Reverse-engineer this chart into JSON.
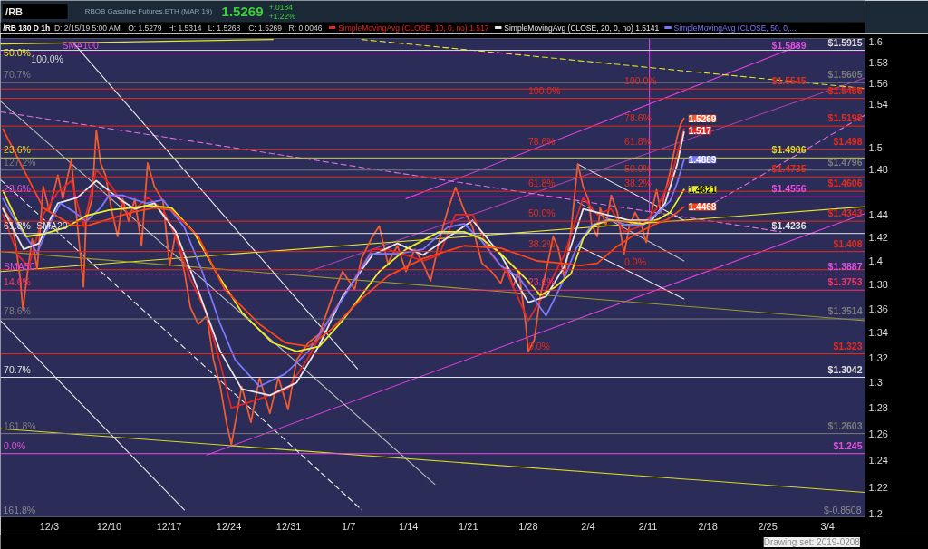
{
  "chart_data": {
    "type": "line",
    "title": "RBOB Gasoline Futures,ETH (MAR 19)",
    "subtitle": "/RB 180 D 1h",
    "log": true,
    "legend": "top",
    "xlim": [
      "2018-11-27T07:00",
      "2019-03-08T09:00"
    ],
    "ylim": [
      1.198,
      1.603
    ],
    "xticks": [
      {
        "value": "2018-12-03",
        "label": "12/3"
      },
      {
        "value": "2018-12-10",
        "label": "12/10"
      },
      {
        "value": "2018-12-17",
        "label": "12/17"
      },
      {
        "value": "2018-12-24",
        "label": "12/24"
      },
      {
        "value": "2018-12-31",
        "label": "12/31"
      },
      {
        "value": "2019-01-07",
        "label": "1/7"
      },
      {
        "value": "2019-01-14",
        "label": "1/14"
      },
      {
        "value": "2019-01-21",
        "label": "1/21"
      },
      {
        "value": "2019-01-28",
        "label": "1/28"
      },
      {
        "value": "2019-02-04",
        "label": "2/4"
      },
      {
        "value": "2019-02-11",
        "label": "2/11"
      },
      {
        "value": "2019-02-18",
        "label": "2/18"
      },
      {
        "value": "2019-02-25",
        "label": "2/25"
      },
      {
        "value": "2019-03-04",
        "label": "3/4"
      }
    ],
    "yticks": [
      1.2,
      1.22,
      1.24,
      1.26,
      1.28,
      1.3,
      1.32,
      1.34,
      1.36,
      1.38,
      1.4,
      1.42,
      1.44,
      {
        "value": 1.46,
        "label": null
      },
      1.48,
      1.5,
      {
        "value": 1.52,
        "label": null
      },
      1.54,
      1.56,
      1.58,
      1.6
    ],
    "series": [
      {
        "color": "#e040e0",
        "x": [
          "2019-01-13T17:00",
          "2019-02-28T16:00"
        ],
        "values": [
          1.454,
          1.596
        ]
      },
      {
        "color": "#e040e0",
        "x": [
          "2018-12-21T10:00",
          "2019-03-08T09:00"
        ],
        "values": [
          1.244,
          1.441
        ]
      },
      {
        "color": "#b040b0",
        "x": [
          "2019-01-02T07:00",
          "2019-03-08T09:00"
        ],
        "values": [
          1.391,
          1.565
        ]
      },
      {
        "color": "#e070e0",
        "line_style": "dashed",
        "x": [
          "2018-11-27T07:00",
          "2019-02-26T13:00"
        ],
        "values": [
          1.533,
          1.425
        ]
      },
      {
        "color": "#e070e0",
        "line_style": "dashed",
        "x": [
          "2019-02-18T16:00",
          "2019-03-08T09:00"
        ],
        "values": [
          1.45,
          1.53
        ]
      },
      {
        "color": "#e6e620",
        "x": [
          "2018-11-27T07:00",
          "2019-03-08T09:00"
        ],
        "values": [
          1.391,
          1.447
        ]
      },
      {
        "color": "#9a9a2a",
        "x": [
          "2018-11-27T07:00",
          "2019-03-08T09:00"
        ],
        "values": [
          1.408,
          1.35
        ]
      },
      {
        "color": "#d8d820",
        "x": [
          "2018-11-27T07:00",
          "2019-03-08T09:00"
        ],
        "values": [
          1.264,
          1.216
        ]
      },
      {
        "color": "#e6e620",
        "line_style": "dashed",
        "x": [
          "2019-01-08T13:00",
          "2019-03-08T09:00"
        ],
        "values": [
          1.602,
          1.555
        ]
      },
      {
        "color": "#e6e620",
        "x": [
          "2018-11-27T07:00",
          "2018-12-29T04:00"
        ],
        "values": [
          1.5976,
          1.602
        ]
      },
      {
        "color": "#e8e8e8",
        "x": [
          "2018-12-05T19:00",
          "2019-01-08T01:00"
        ],
        "values": [
          1.599,
          1.311
        ]
      },
      {
        "color": "#bdbdbd",
        "x": [
          "2018-11-27T07:00",
          "2019-01-17T02:00"
        ],
        "values": [
          1.543,
          1.222
        ]
      },
      {
        "color": "#e8e8e8",
        "line_style": "dashed",
        "x": [
          "2018-11-27T07:00",
          "2019-01-08T13:00"
        ],
        "values": [
          1.471,
          1.203
        ]
      },
      {
        "color": "#e8e8e8",
        "x": [
          "2018-11-27T07:00",
          "2018-12-18T19:00"
        ],
        "values": [
          1.35,
          1.203
        ]
      },
      {
        "color": "#e8e8e8",
        "x": [
          "2019-02-02T19:00",
          "2019-02-15T05:00"
        ],
        "values": [
          1.485,
          1.435
        ]
      },
      {
        "color": "#bdbdbd",
        "x": [
          "2019-02-02T19:00",
          "2019-02-15T05:00"
        ],
        "values": [
          1.451,
          1.4
        ]
      },
      {
        "color": "#e8e8e8",
        "x": [
          "2019-02-02T19:00",
          "2019-02-15T05:00"
        ],
        "values": [
          1.413,
          1.368
        ]
      },
      {
        "color": "#e040e0",
        "x": [
          "2019-02-11T04:00",
          "2019-02-11T04:00"
        ],
        "values": [
          1.602,
          1.442
        ]
      },
      {
        "color": "#f05a30",
        "x": [
          "2018-11-27T14:00",
          "2018-11-28T14:00",
          "2018-11-29T02:00",
          "2018-11-29T14:00",
          "2018-11-29T22:00",
          "2018-11-30T12:00",
          "2018-12-01T00:00",
          "2018-12-01T14:00",
          "2018-12-02T07:00",
          "2018-12-03T00:00",
          "2018-12-04T00:00",
          "2018-12-04T14:00",
          "2018-12-05T14:00",
          "2018-12-06T07:00",
          "2018-12-07T00:00",
          "2018-12-07T07:00",
          "2018-12-08T00:00",
          "2018-12-08T12:00",
          "2018-12-09T00:00",
          "2018-12-09T14:00",
          "2018-12-10T07:00",
          "2018-12-11T00:00",
          "2018-12-11T14:00",
          "2018-12-12T07:00",
          "2018-12-13T00:00",
          "2018-12-13T19:00",
          "2018-12-14T12:00",
          "2018-12-15T07:00",
          "2018-12-16T07:00",
          "2018-12-17T02:00",
          "2018-12-17T19:00",
          "2018-12-18T19:00",
          "2018-12-19T12:00",
          "2018-12-20T10:00",
          "2018-12-21T10:00",
          "2018-12-22T05:00",
          "2018-12-23T00:00",
          "2018-12-23T17:00",
          "2018-12-24T07:00",
          "2018-12-25T12:00",
          "2018-12-26T14:00",
          "2018-12-27T14:00",
          "2018-12-28T19:00",
          "2018-12-29T19:00",
          "2018-12-30T22:00",
          "2018-12-31T22:00",
          "2019-01-02T07:00",
          "2019-01-03T14:00",
          "2019-01-05T00:00",
          "2019-01-06T07:00",
          "2019-01-07T17:00",
          "2019-01-08T12:00",
          "2019-01-09T19:00",
          "2019-01-10T14:00",
          "2019-01-11T14:00",
          "2019-01-12T17:00",
          "2019-01-13T17:00",
          "2019-01-14T17:00",
          "2019-01-15T17:00",
          "2019-01-16T14:00",
          "2019-01-17T14:00",
          "2019-01-18T14:00",
          "2019-01-19T12:00",
          "2019-01-20T12:00",
          "2019-01-21T12:00",
          "2019-01-22T14:00",
          "2019-01-23T17:00",
          "2019-01-24T19:00",
          "2019-01-25T12:00",
          "2019-01-26T05:00",
          "2019-01-26T22:00",
          "2019-01-27T17:00",
          "2019-01-28T00:00",
          "2019-01-28T17:00",
          "2019-01-29T10:00",
          "2019-01-30T02:00",
          "2019-01-30T22:00",
          "2019-01-31T12:00",
          "2019-02-01T05:00",
          "2019-02-02T00:00",
          "2019-02-02T19:00",
          "2019-02-03T10:00",
          "2019-02-04T02:00",
          "2019-02-04T10:00",
          "2019-02-05T02:00",
          "2019-02-05T10:00",
          "2019-02-06T02:00",
          "2019-02-06T17:00",
          "2019-02-07T10:00",
          "2019-02-08T05:00",
          "2019-02-08T19:00",
          "2019-02-09T12:00",
          "2019-02-10T05:00",
          "2019-02-10T19:00",
          "2019-02-11T10:00",
          "2019-02-12T00:00",
          "2019-02-12T12:00",
          "2019-02-13T00:00",
          "2019-02-13T14:00",
          "2019-02-14T00:00",
          "2019-02-14T10:00",
          "2019-02-14T19:00",
          "2019-02-15T05:00"
        ],
        "values": [
          1.446,
          1.434,
          1.413,
          1.386,
          1.359,
          1.393,
          1.419,
          1.393,
          1.465,
          1.444,
          1.475,
          1.454,
          1.489,
          1.431,
          1.378,
          1.434,
          1.454,
          1.516,
          1.486,
          1.475,
          1.444,
          1.421,
          1.454,
          1.434,
          1.454,
          1.413,
          1.486,
          1.465,
          1.452,
          1.396,
          1.425,
          1.391,
          1.361,
          1.347,
          1.354,
          1.318,
          1.297,
          1.269,
          1.252,
          1.297,
          1.269,
          1.304,
          1.276,
          1.304,
          1.279,
          1.318,
          1.332,
          1.339,
          1.368,
          1.391,
          1.376,
          1.402,
          1.421,
          1.43,
          1.398,
          1.413,
          1.391,
          1.41,
          1.398,
          1.383,
          1.417,
          1.444,
          1.464,
          1.444,
          1.429,
          1.398,
          1.391,
          1.381,
          1.396,
          1.378,
          1.391,
          1.347,
          1.325,
          1.334,
          1.371,
          1.391,
          1.421,
          1.411,
          1.386,
          1.426,
          1.485,
          1.465,
          1.452,
          1.431,
          1.421,
          1.446,
          1.431,
          1.457,
          1.442,
          1.406,
          1.429,
          1.442,
          1.431,
          1.416,
          1.442,
          1.462,
          1.442,
          1.46,
          1.478,
          1.494,
          1.51,
          1.521,
          1.5269
        ],
        "value_labels": [
          null,
          null,
          null,
          null,
          null,
          null,
          null,
          null,
          null,
          null,
          null,
          null,
          null,
          null,
          null,
          null,
          null,
          null,
          null,
          null,
          null,
          null,
          null,
          null,
          null,
          null,
          null,
          null,
          null,
          null,
          null,
          null,
          null,
          null,
          null,
          null,
          null,
          null,
          null,
          null,
          null,
          null,
          null,
          null,
          null,
          null,
          null,
          null,
          null,
          null,
          null,
          null,
          null,
          null,
          null,
          null,
          null,
          null,
          null,
          null,
          null,
          null,
          null,
          null,
          null,
          null,
          null,
          null,
          null,
          null,
          null,
          null,
          null,
          null,
          null,
          null,
          null,
          null,
          null,
          null,
          null,
          null,
          null,
          null,
          null,
          null,
          null,
          null,
          null,
          null,
          null,
          null,
          null,
          null,
          null,
          null,
          null,
          null,
          null,
          null,
          null,
          null,
          "1.5269"
        ]
      },
      {
        "name": "SimpleMovingAvg (CLOSE, 10, 0, no)",
        "color": "#e02626",
        "x": [
          "2018-11-27T14:00",
          "2018-11-29T08:00",
          "2018-11-30T14:00",
          "2018-12-02T07:00",
          "2018-12-04T00:00",
          "2018-12-05T14:00",
          "2018-12-07T00:00",
          "2018-12-08T12:00",
          "2018-12-10T07:00",
          "2018-12-12T07:00",
          "2018-12-14T12:00",
          "2018-12-16T07:00",
          "2018-12-17T19:00",
          "2018-12-19T12:00",
          "2018-12-21T10:00",
          "2018-12-23T00:00",
          "2018-12-24T07:00",
          "2018-12-26T14:00",
          "2018-12-28T19:00",
          "2018-12-30T22:00",
          "2019-01-02T07:00",
          "2019-01-05T00:00",
          "2019-01-07T17:00",
          "2019-01-09T19:00",
          "2019-01-11T14:00",
          "2019-01-13T17:00",
          "2019-01-15T17:00",
          "2019-01-17T14:00",
          "2019-01-19T12:00",
          "2019-01-21T12:00",
          "2019-01-23T17:00",
          "2019-01-25T12:00",
          "2019-01-28T00:00",
          "2019-01-30T02:00",
          "2019-02-01T05:00",
          "2019-02-03T10:00",
          "2019-02-05T02:00",
          "2019-02-06T17:00",
          "2019-02-08T05:00",
          "2019-02-10T05:00",
          "2019-02-12T00:00",
          "2019-02-13T14:00",
          "2019-02-15T05:00"
        ],
        "values": [
          1.44,
          1.405,
          1.395,
          1.44,
          1.46,
          1.47,
          1.43,
          1.48,
          1.465,
          1.44,
          1.455,
          1.445,
          1.42,
          1.385,
          1.355,
          1.315,
          1.28,
          1.285,
          1.29,
          1.295,
          1.32,
          1.355,
          1.385,
          1.41,
          1.41,
          1.405,
          1.4,
          1.405,
          1.44,
          1.44,
          1.405,
          1.39,
          1.35,
          1.375,
          1.405,
          1.455,
          1.44,
          1.445,
          1.425,
          1.43,
          1.445,
          1.47,
          1.517
        ],
        "value_labels": [
          null,
          null,
          null,
          null,
          null,
          null,
          null,
          null,
          null,
          null,
          null,
          null,
          null,
          null,
          null,
          null,
          null,
          null,
          null,
          null,
          null,
          null,
          null,
          null,
          null,
          null,
          null,
          null,
          null,
          null,
          null,
          null,
          null,
          null,
          null,
          null,
          null,
          null,
          null,
          null,
          null,
          null,
          "1.517"
        ]
      },
      {
        "name": "SimpleMovingAvg (CLOSE, 20, 0, no)",
        "color": "#e6e6e6",
        "x": [
          "2018-11-27T14:00",
          "2018-11-30T00:00",
          "2018-12-01T19:00",
          "2018-12-04T00:00",
          "2018-12-06T07:00",
          "2018-12-08T12:00",
          "2018-12-11T00:00",
          "2018-12-13T00:00",
          "2018-12-15T07:00",
          "2018-12-17T19:00",
          "2018-12-20T10:00",
          "2018-12-23T00:00",
          "2018-12-25T12:00",
          "2018-12-28T19:00",
          "2018-12-31T22:00",
          "2019-01-03T14:00",
          "2019-01-06T07:00",
          "2019-01-09T19:00",
          "2019-01-12T17:00",
          "2019-01-15T17:00",
          "2019-01-18T14:00",
          "2019-01-21T12:00",
          "2019-01-24T19:00",
          "2019-01-28T00:00",
          "2019-01-30T02:00",
          "2019-02-01T05:00",
          "2019-02-03T10:00",
          "2019-02-06T02:00",
          "2019-02-08T19:00",
          "2019-02-11T10:00",
          "2019-02-13T00:00",
          "2019-02-14T10:00",
          "2019-02-15T05:00"
        ],
        "values": [
          1.445,
          1.41,
          1.415,
          1.45,
          1.455,
          1.47,
          1.455,
          1.445,
          1.45,
          1.425,
          1.375,
          1.325,
          1.295,
          1.29,
          1.3,
          1.33,
          1.37,
          1.405,
          1.415,
          1.405,
          1.42,
          1.435,
          1.405,
          1.365,
          1.37,
          1.395,
          1.445,
          1.44,
          1.435,
          1.435,
          1.45,
          1.485,
          1.5141
        ]
      },
      {
        "name": "SimpleMovingAvg (CLOSE, 50, 0,...",
        "color": "#7878ff",
        "x": [
          "2018-11-27T14:00",
          "2018-11-29T07:00",
          "2018-12-01T14:00",
          "2018-12-03T00:00",
          "2018-12-04T07:00",
          "2018-12-06T00:00",
          "2018-12-07T07:00",
          "2018-12-09T00:00",
          "2018-12-10T00:00",
          "2018-12-11T14:00",
          "2018-12-12T15:00",
          "2018-12-14T08:00",
          "2018-12-16T07:00",
          "2018-12-18T19:00",
          "2018-12-20T21:00",
          "2018-12-23T00:00",
          "2018-12-24T18:00",
          "2018-12-27T14:00",
          "2018-12-30T14:00",
          "2019-01-02T07:00",
          "2019-01-06T07:00",
          "2019-01-09T13:00",
          "2019-01-12T17:00",
          "2019-01-15T17:00",
          "2019-01-18T14:00",
          "2019-01-20T12:00",
          "2019-01-22T14:00",
          "2019-01-24T19:00",
          "2019-01-26T22:00",
          "2019-01-28T17:00",
          "2019-01-30T02:00",
          "2019-01-31T23:00",
          "2019-02-02T15:00",
          "2019-02-04T10:00",
          "2019-02-06T11:00",
          "2019-02-08T12:00",
          "2019-02-10T11:00",
          "2019-02-12T05:00",
          "2019-02-13T14:00",
          "2019-02-14T10:00",
          "2019-02-15T05:00"
        ],
        "values": [
          1.454,
          1.431,
          1.407,
          1.431,
          1.45,
          1.442,
          1.434,
          1.446,
          1.457,
          1.457,
          1.454,
          1.45,
          1.453,
          1.429,
          1.391,
          1.347,
          1.318,
          1.297,
          1.307,
          1.325,
          1.368,
          1.406,
          1.406,
          1.41,
          1.429,
          1.432,
          1.417,
          1.396,
          1.386,
          1.368,
          1.354,
          1.381,
          1.411,
          1.431,
          1.436,
          1.431,
          1.431,
          1.442,
          1.452,
          1.468,
          1.4889
        ],
        "value_labels": [
          null,
          null,
          null,
          null,
          null,
          null,
          null,
          null,
          null,
          null,
          null,
          null,
          null,
          null,
          null,
          null,
          null,
          null,
          null,
          null,
          null,
          null,
          null,
          null,
          null,
          null,
          null,
          null,
          null,
          null,
          null,
          null,
          null,
          null,
          null,
          null,
          null,
          null,
          null,
          null,
          "1.4889"
        ]
      },
      {
        "color": "#ecec28",
        "x": [
          "2018-11-27T14:00",
          "2018-11-29T07:00",
          "2018-11-30T08:00",
          "2018-12-02T07:00",
          "2018-12-05T00:00",
          "2018-12-07T07:00",
          "2018-12-10T00:00",
          "2018-12-12T15:00",
          "2018-12-14T15:00",
          "2018-12-17T07:00",
          "2018-12-19T21:00",
          "2018-12-22T11:00",
          "2018-12-25T12:00",
          "2018-12-29T02:00",
          "2018-12-31T22:00",
          "2019-01-03T14:00",
          "2019-01-06T07:00",
          "2019-01-10T14:00",
          "2019-01-13T17:00",
          "2019-01-17T14:00",
          "2019-01-20T12:00",
          "2019-01-22T14:00",
          "2019-01-24T19:00",
          "2019-01-27T17:00",
          "2019-01-29T10:00",
          "2019-01-31T04:00",
          "2019-02-02T00:00",
          "2019-02-03T10:00",
          "2019-02-04T17:00",
          "2019-02-06T11:00",
          "2019-02-08T12:00",
          "2019-02-10T11:00",
          "2019-02-12T05:00",
          "2019-02-13T14:00",
          "2019-02-14T10:00",
          "2019-02-15T05:00"
        ],
        "values": [
          1.461,
          1.434,
          1.421,
          1.423,
          1.429,
          1.439,
          1.444,
          1.446,
          1.448,
          1.446,
          1.425,
          1.391,
          1.357,
          1.332,
          1.325,
          1.329,
          1.35,
          1.391,
          1.41,
          1.425,
          1.425,
          1.419,
          1.406,
          1.385,
          1.371,
          1.378,
          1.389,
          1.419,
          1.431,
          1.435,
          1.434,
          1.432,
          1.436,
          1.442,
          1.452,
          1.4621
        ],
        "value_labels": [
          null,
          null,
          null,
          null,
          null,
          null,
          null,
          null,
          null,
          null,
          null,
          null,
          null,
          null,
          null,
          null,
          null,
          null,
          null,
          null,
          null,
          null,
          null,
          null,
          null,
          null,
          null,
          null,
          null,
          null,
          null,
          null,
          null,
          null,
          null,
          "1.4621"
        ]
      },
      {
        "color": "#ff4418",
        "x": [
          "2018-11-27T14:00",
          "2018-12-02T07:00",
          "2018-12-05T14:00",
          "2018-12-07T07:00",
          "2018-12-10T00:00",
          "2018-12-12T15:00",
          "2018-12-15T07:00",
          "2018-12-17T07:00",
          "2018-12-20T10:00",
          "2018-12-23T12:00",
          "2018-12-27T14:00",
          "2018-12-30T14:00",
          "2019-01-02T07:00",
          "2019-01-05T00:00",
          "2019-01-08T12:00",
          "2019-01-11T14:00",
          "2019-01-15T17:00",
          "2019-01-20T12:00",
          "2019-01-24T19:00",
          "2019-01-29T01:00",
          "2019-01-31T23:00",
          "2019-02-03T02:00",
          "2019-02-05T02:00",
          "2019-02-07T03:00",
          "2019-02-09T12:00",
          "2019-02-11T16:00",
          "2019-02-13T07:00",
          "2019-02-14T10:00",
          "2019-02-15T05:00"
        ],
        "values": [
          1.517,
          1.446,
          1.431,
          1.43,
          1.436,
          1.442,
          1.446,
          1.444,
          1.421,
          1.376,
          1.347,
          1.332,
          1.329,
          1.343,
          1.368,
          1.387,
          1.402,
          1.413,
          1.411,
          1.4,
          1.398,
          1.396,
          1.398,
          1.411,
          1.423,
          1.431,
          1.436,
          1.442,
          1.4468
        ],
        "value_labels": [
          null,
          null,
          null,
          null,
          null,
          null,
          null,
          null,
          null,
          null,
          null,
          null,
          null,
          null,
          null,
          null,
          null,
          null,
          null,
          null,
          null,
          null,
          null,
          null,
          null,
          null,
          null,
          null,
          "1.4468"
        ]
      }
    ],
    "ref_lines": [
      {
        "axis": "y",
        "value": 1.5915,
        "label": "$1.5915",
        "color": "#d8d8d8"
      },
      {
        "axis": "y",
        "value": 1.5889,
        "label": "$1.5889",
        "color": "#e050e0"
      },
      {
        "axis": "y",
        "value": 1.5605,
        "label": "$1.5605",
        "color": "#7a7a7a"
      },
      {
        "axis": "y",
        "value": 1.5545,
        "label": "$1.5545",
        "color": "#e82a1a"
      },
      {
        "axis": "y",
        "value": 1.5456,
        "label": "$1.5456",
        "color": "#e82a1a"
      },
      {
        "axis": "y",
        "value": 1.5198,
        "label": "$1.5198",
        "color": "#e82a1a"
      },
      {
        "axis": "y",
        "value": 1.498,
        "label": "$1.498",
        "color": "#e82a1a"
      },
      {
        "axis": "y",
        "value": 1.4906,
        "label": "$1.4906",
        "color": "#d8d820"
      },
      {
        "axis": "y",
        "value": 1.4796,
        "label": "$1.4796",
        "color": "#7a7a7a"
      },
      {
        "axis": "y",
        "value": 1.4735,
        "label": "$1.4735",
        "color": "#e82a1a"
      },
      {
        "axis": "y",
        "value": 1.4606,
        "label": "$1.4606",
        "color": "#e82a1a"
      },
      {
        "axis": "y",
        "value": 1.4556,
        "label": "$1.4556",
        "color": "#e050e0"
      },
      {
        "axis": "y",
        "value": 1.4343,
        "label": "$1.4343",
        "color": "#e82a1a"
      },
      {
        "axis": "y",
        "value": 1.4236,
        "label": "$1.4236",
        "color": "#e0e0e0"
      },
      {
        "axis": "y",
        "value": 1.408,
        "label": "$1.408",
        "color": "#e82a1a"
      },
      {
        "axis": "y",
        "value": 1.3925,
        "label": null,
        "color": "#e82a1a"
      },
      {
        "axis": "y",
        "value": 1.3887,
        "label": "$1.3887",
        "color": "#e050e0",
        "line_style": "dotted"
      },
      {
        "axis": "y",
        "value": 1.3753,
        "label": "$1.3753",
        "color": "#ff3068"
      },
      {
        "axis": "y",
        "value": 1.3514,
        "label": "$1.3514",
        "color": "#7a7a7a"
      },
      {
        "axis": "y",
        "value": 1.323,
        "label": "$1.323",
        "color": "#e82a1a"
      },
      {
        "axis": "y",
        "value": 1.3042,
        "label": "$1.3042",
        "color": "#e0e0e0"
      },
      {
        "axis": "y",
        "value": 1.2603,
        "label": "$1.2603",
        "color": "#7a7a7a"
      },
      {
        "axis": "y",
        "value": 1.245,
        "label": "$1.245",
        "color": "#e050e0"
      }
    ],
    "annotations": [
      "/RB",
      "1.5269",
      "+.0184",
      "+1.22%",
      "D: 2/15/19 5:00 AM",
      "O: 1.5279",
      "H: 1.5314",
      "L: 1.5268",
      "C: 1.5269",
      "R: 0.0046",
      "$-0.8508",
      "161.8%",
      "Drawing set: 2019-0208",
      "1.517",
      "1.5141",
      {
        "text": "50.0%",
        "x": "2018-11-27T16:00",
        "y": 1.5976
      },
      {
        "text": "100.0%",
        "x": "2018-11-30T21:00",
        "y": 1.5915
      },
      {
        "text": "SMA100",
        "x": "2018-12-04T12:00",
        "y": 1.5889
      },
      {
        "text": "70.7%",
        "x": "2018-11-27T16:00",
        "y": 1.5605
      },
      {
        "text": "23.6%",
        "x": "2018-11-27T16:00",
        "y": 1.4906
      },
      {
        "text": "127.2%",
        "x": "2018-11-27T16:00",
        "y": 1.4796
      },
      {
        "text": "23.6%",
        "x": "2018-11-27T16:00",
        "y": 1.4556
      },
      {
        "text": "61.8%",
        "x": "2018-11-27T16:00",
        "y": 1.4236
      },
      {
        "text": "SMA20",
        "x": "2018-12-01T12:00",
        "y": 1.4236
      },
      {
        "text": "SMA50",
        "x": "2018-11-27T16:00",
        "y": 1.3887
      },
      {
        "text": "14.6%",
        "x": "2018-11-27T16:00",
        "y": 1.3753
      },
      {
        "text": "78.6%",
        "x": "2018-11-27T16:00",
        "y": 1.3514
      },
      {
        "text": "70.7%",
        "x": "2018-11-27T16:00",
        "y": 1.3042
      },
      {
        "text": "161.8%",
        "x": "2018-11-27T16:00",
        "y": 1.2603
      },
      {
        "text": "0.0%",
        "x": "2018-11-27T16:00",
        "y": 1.245
      },
      {
        "text": "100.0%",
        "x": "2019-01-28T00:00",
        "y": 1.5456
      },
      {
        "text": "78.6%",
        "x": "2019-01-28T00:00",
        "y": 1.498
      },
      {
        "text": "61.8%",
        "x": "2019-01-28T00:00",
        "y": 1.4606
      },
      {
        "text": "50.0%",
        "x": "2019-01-28T00:00",
        "y": 1.4343
      },
      {
        "text": "38.2%",
        "x": "2019-01-28T00:00",
        "y": 1.408
      },
      {
        "text": "23.6%",
        "x": "2019-01-28T00:00",
        "y": 1.3753
      },
      {
        "text": "0.0%",
        "x": "2019-01-28T00:00",
        "y": 1.323
      },
      {
        "text": "100.0%",
        "x": "2019-02-08T06:00",
        "y": 1.5545
      },
      {
        "text": "78.6%",
        "x": "2019-02-08T06:00",
        "y": 1.5198
      },
      {
        "text": "61.8%",
        "x": "2019-02-08T06:00",
        "y": 1.498
      },
      {
        "text": "50.0%",
        "x": "2019-02-08T06:00",
        "y": 1.4735
      },
      {
        "text": "38.2%",
        "x": "2019-02-08T06:00",
        "y": 1.4606
      },
      {
        "text": "0.0%",
        "x": "2019-02-08T06:00",
        "y": 1.3925
      }
    ]
  }
}
